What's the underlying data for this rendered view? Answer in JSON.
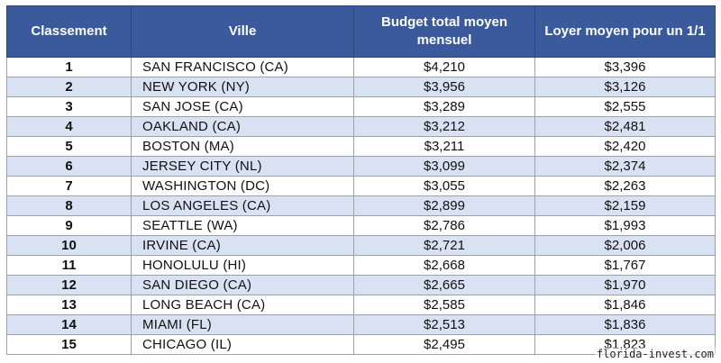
{
  "table": {
    "headers": [
      "Classement",
      "Ville",
      "Budget total moyen mensuel",
      "Loyer moyen pour un 1/1"
    ],
    "rows": [
      {
        "rank": "1",
        "city": "SAN FRANCISCO (CA)",
        "budget": "$4,210",
        "rent": "$3,396"
      },
      {
        "rank": "2",
        "city": "NEW YORK (NY)",
        "budget": "$3,956",
        "rent": "$3,126"
      },
      {
        "rank": "3",
        "city": "SAN JOSE (CA)",
        "budget": "$3,289",
        "rent": "$2,555"
      },
      {
        "rank": "4",
        "city": "OAKLAND (CA)",
        "budget": "$3,212",
        "rent": "$2,481"
      },
      {
        "rank": "5",
        "city": "BOSTON (MA)",
        "budget": "$3,211",
        "rent": "$2,420"
      },
      {
        "rank": "6",
        "city": "JERSEY CITY (NL)",
        "budget": "$3,099",
        "rent": "$2,374"
      },
      {
        "rank": "7",
        "city": "WASHINGTON (DC)",
        "budget": "$3,055",
        "rent": "$2,263"
      },
      {
        "rank": "8",
        "city": "LOS ANGELES (CA)",
        "budget": "$2,899",
        "rent": "$2,159"
      },
      {
        "rank": "9",
        "city": "SEATTLE (WA)",
        "budget": "$2,786",
        "rent": "$1,993"
      },
      {
        "rank": "10",
        "city": "IRVINE (CA)",
        "budget": "$2,721",
        "rent": "$2,006"
      },
      {
        "rank": "11",
        "city": "HONOLULU (HI)",
        "budget": "$2,668",
        "rent": "$1,767"
      },
      {
        "rank": "12",
        "city": "SAN DIEGO (CA)",
        "budget": "$2,665",
        "rent": "$1,970"
      },
      {
        "rank": "13",
        "city": "LONG BEACH (CA)",
        "budget": "$2,585",
        "rent": "$1,846"
      },
      {
        "rank": "14",
        "city": "MIAMI (FL)",
        "budget": "$2,513",
        "rent": "$1,836"
      },
      {
        "rank": "15",
        "city": "CHICAGO (IL)",
        "budget": "$2,495",
        "rent": "$1,823"
      }
    ]
  },
  "watermark": "florida-invest.com",
  "colors": {
    "header_bg": "#3a5a9c",
    "header_text": "#ffffff",
    "stripe": "#d9e2f3",
    "border": "#9aa3ad"
  }
}
